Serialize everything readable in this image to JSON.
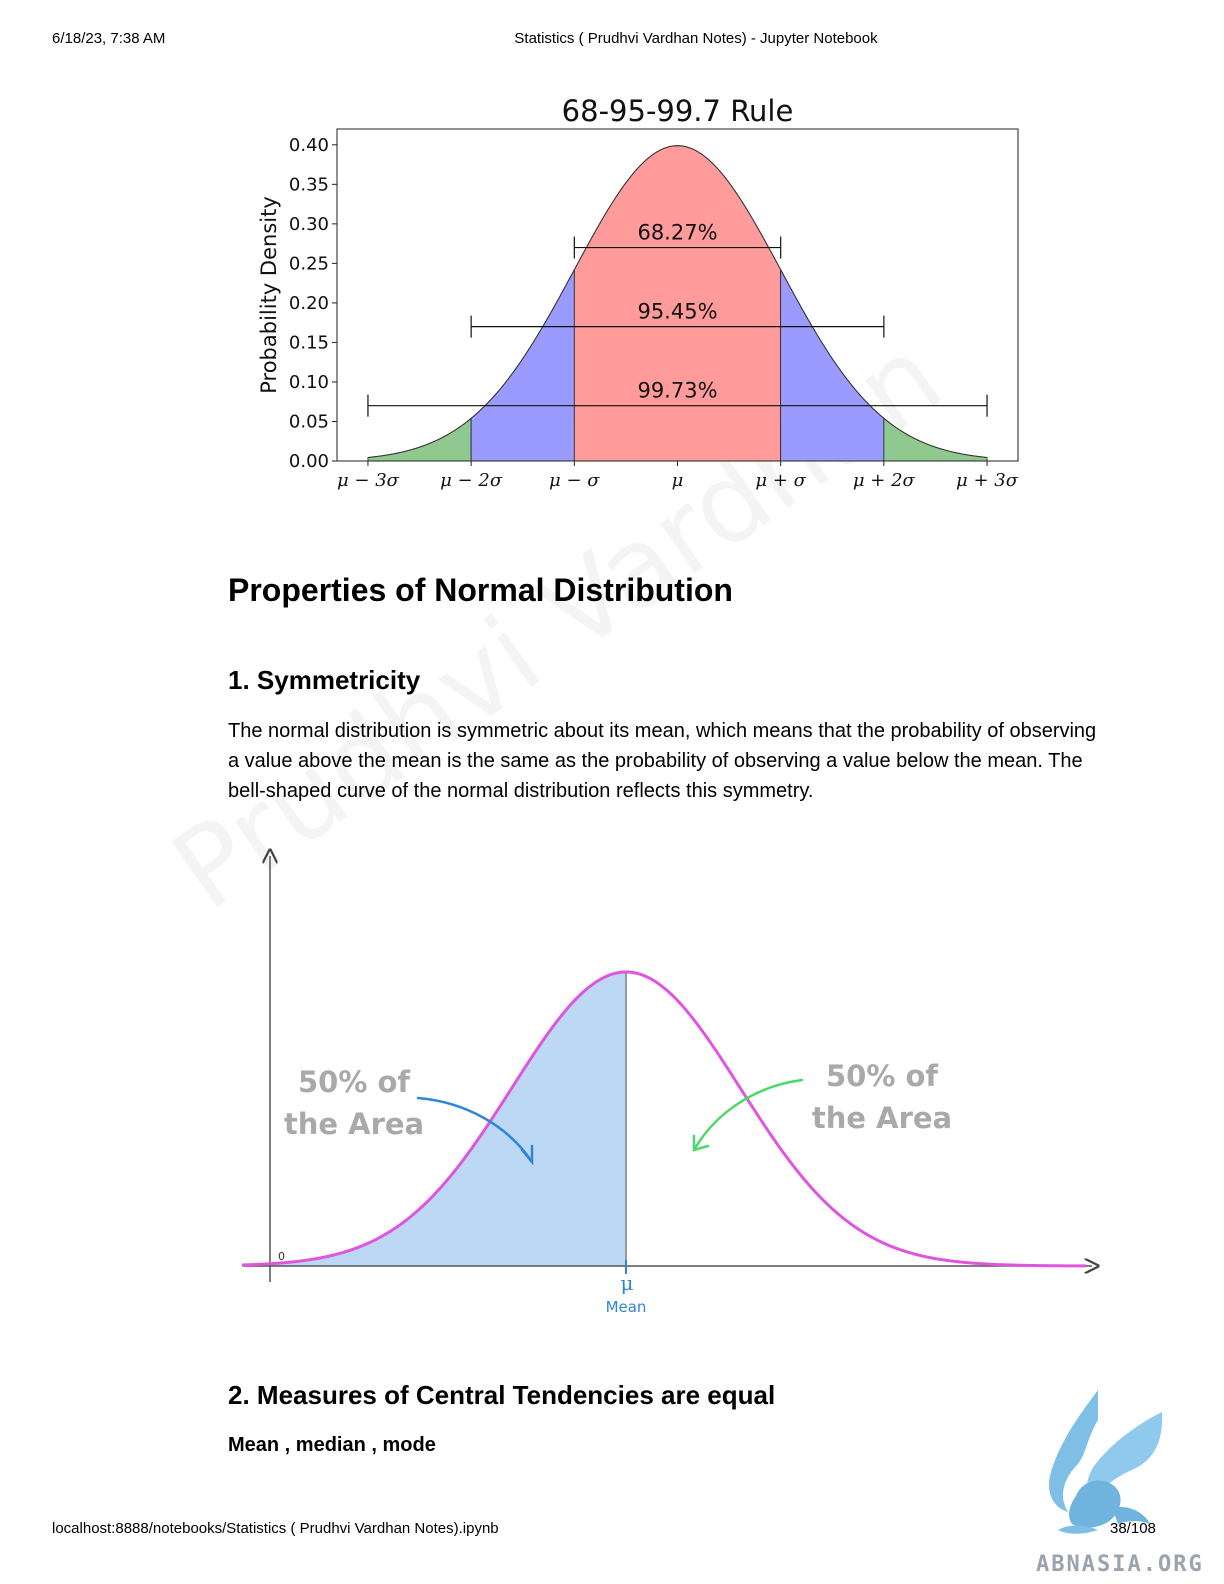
{
  "header": {
    "datetime": "6/18/23, 7:38 AM",
    "title": "Statistics ( Prudhvi Vardhan Notes) - Jupyter Notebook"
  },
  "footer": {
    "url": "localhost:8888/notebooks/Statistics ( Prudhvi Vardhan Notes).ipynb",
    "page": "38/108"
  },
  "watermark": "Prudhvi Vardhan",
  "chart_data": {
    "type": "area",
    "title": "68-95-99.7 Rule",
    "ylabel": "Probability Density",
    "xlabel": "",
    "ylim": [
      0,
      0.42
    ],
    "xlim": [
      -3.3,
      3.3
    ],
    "yticks": [
      "0.00",
      "0.05",
      "0.10",
      "0.15",
      "0.20",
      "0.25",
      "0.30",
      "0.35",
      "0.40"
    ],
    "xticks": [
      {
        "x": -3,
        "label": "μ − 3σ"
      },
      {
        "x": -2,
        "label": "μ − 2σ"
      },
      {
        "x": -1,
        "label": "μ − σ"
      },
      {
        "x": 0,
        "label": "μ"
      },
      {
        "x": 1,
        "label": "μ + σ"
      },
      {
        "x": 2,
        "label": "μ + 2σ"
      },
      {
        "x": 3,
        "label": "μ + 3σ"
      }
    ],
    "curve": "standard normal pdf, mean 0, sd 1, plotted from -3 to 3",
    "bands": [
      {
        "from": -3,
        "to": -2,
        "color": "#8fc98f"
      },
      {
        "from": -2,
        "to": -1,
        "color": "#9b9bff"
      },
      {
        "from": -1,
        "to": 1,
        "color": "#ff9b9b"
      },
      {
        "from": 1,
        "to": 2,
        "color": "#9b9bff"
      },
      {
        "from": 2,
        "to": 3,
        "color": "#8fc98f"
      }
    ],
    "intervals": [
      {
        "from": -1,
        "to": 1,
        "y": 0.27,
        "label": "68.27%"
      },
      {
        "from": -2,
        "to": 2,
        "y": 0.17,
        "label": "95.45%"
      },
      {
        "from": -3,
        "to": 3,
        "y": 0.07,
        "label": "99.73%"
      }
    ]
  },
  "section": {
    "heading": "Properties of Normal Distribution",
    "sub1": "1. Symmetricity",
    "para1": "The normal distribution is symmetric about its mean, which means that the probability of observing a value above the mean is the same as the probability of observing a value below the mean. The bell-shaped curve of the normal distribution reflects this symmetry.",
    "sub2": "2. Measures of Central Tendencies are equal",
    "bold_line": "Mean , median , mode"
  },
  "symmetry_figure": {
    "left_label_1": "50% of",
    "left_label_2": "the Area",
    "right_label_1": "50% of",
    "right_label_2": "the Area",
    "origin": "0",
    "mu": "μ",
    "mean": "Mean",
    "colors": {
      "curve": "#e055e0",
      "fill": "#bcd8f5",
      "left_arrow": "#2f86d6",
      "right_arrow": "#4ed86a"
    }
  },
  "logo_text": "ABNASIA.ORG"
}
